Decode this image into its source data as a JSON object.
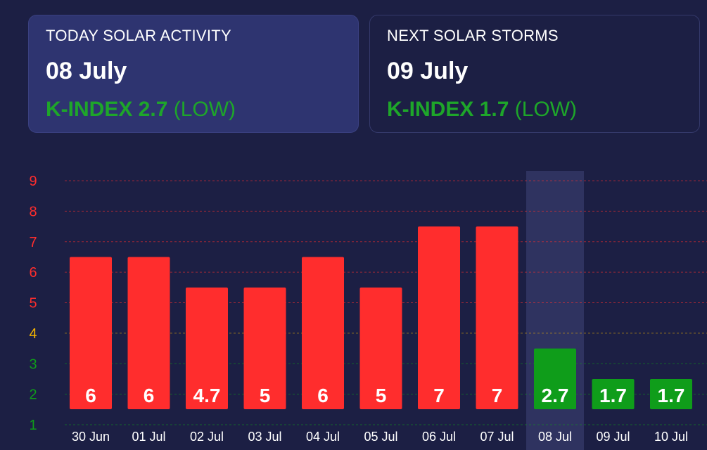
{
  "today": {
    "title": "TODAY SOLAR ACTIVITY",
    "date": "08 July",
    "kindex_label": "K-INDEX 2.7",
    "level": "(LOW)"
  },
  "next": {
    "title": "NEXT SOLAR STORMS",
    "date": "09 July",
    "kindex_label": "K-INDEX 1.7",
    "level": "(LOW)"
  },
  "colors": {
    "background": "#1c1f44",
    "high": "#ff2d2d",
    "low": "#0f9d1a",
    "moderate": "#f5b400",
    "highlight_band": "#2f3360"
  },
  "chart_data": {
    "type": "bar",
    "categories": [
      "30 Jun",
      "01 Jul",
      "02 Jul",
      "03 Jul",
      "04 Jul",
      "05 Jul",
      "06 Jul",
      "07 Jul",
      "08 Jul",
      "09 Jul",
      "10 Jul"
    ],
    "values": [
      6,
      6,
      5,
      5,
      6,
      5,
      7,
      7,
      3,
      2,
      2
    ],
    "labels": [
      "6",
      "6",
      "4.7",
      "5",
      "6",
      "5",
      "7",
      "7",
      "2.7",
      "1.7",
      "1.7"
    ],
    "bar_colors": [
      "high",
      "high",
      "high",
      "high",
      "high",
      "high",
      "high",
      "high",
      "low",
      "low",
      "low"
    ],
    "highlighted_category": "08 Jul",
    "y_ticks": [
      1,
      2,
      3,
      4,
      5,
      6,
      7,
      8,
      9
    ],
    "y_tick_colors": [
      "low",
      "low",
      "low",
      "moderate",
      "high",
      "high",
      "high",
      "high",
      "high"
    ],
    "ylim": [
      1,
      9
    ],
    "grid": true
  }
}
